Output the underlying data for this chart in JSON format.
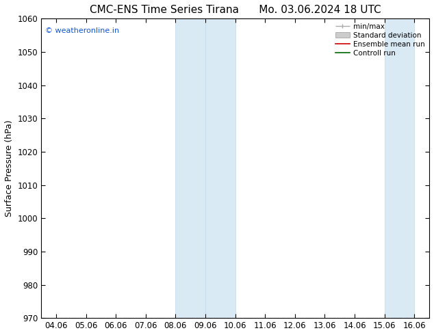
{
  "title_left": "CMC-ENS Time Series Tirana",
  "title_right": "Mo. 03.06.2024 18 UTC",
  "ylabel": "Surface Pressure (hPa)",
  "ylim": [
    970,
    1060
  ],
  "yticks": [
    970,
    980,
    990,
    1000,
    1010,
    1020,
    1030,
    1040,
    1050,
    1060
  ],
  "xlabels": [
    "04.06",
    "05.06",
    "06.06",
    "07.06",
    "08.06",
    "09.06",
    "10.06",
    "11.06",
    "12.06",
    "13.06",
    "14.06",
    "15.06",
    "16.06"
  ],
  "xvalues": [
    0,
    1,
    2,
    3,
    4,
    5,
    6,
    7,
    8,
    9,
    10,
    11,
    12
  ],
  "shaded_bands": [
    {
      "xstart": 4.0,
      "xend": 5.0
    },
    {
      "xstart": 5.0,
      "xend": 6.0
    },
    {
      "xstart": 11.0,
      "xend": 12.0
    }
  ],
  "band_color": "#daeaf5",
  "band_border_color": "#c0d8ee",
  "watermark": "© weatheronline.in",
  "watermark_color": "#1155cc",
  "legend_entries": [
    "min/max",
    "Standard deviation",
    "Ensemble mean run",
    "Controll run"
  ],
  "legend_colors": [
    "#aaaaaa",
    "#cccccc",
    "#cc0000",
    "#006600"
  ],
  "background_color": "#ffffff",
  "title_fontsize": 11,
  "axis_fontsize": 9,
  "tick_fontsize": 8.5,
  "figure_width": 6.34,
  "figure_height": 4.9,
  "dpi": 100
}
